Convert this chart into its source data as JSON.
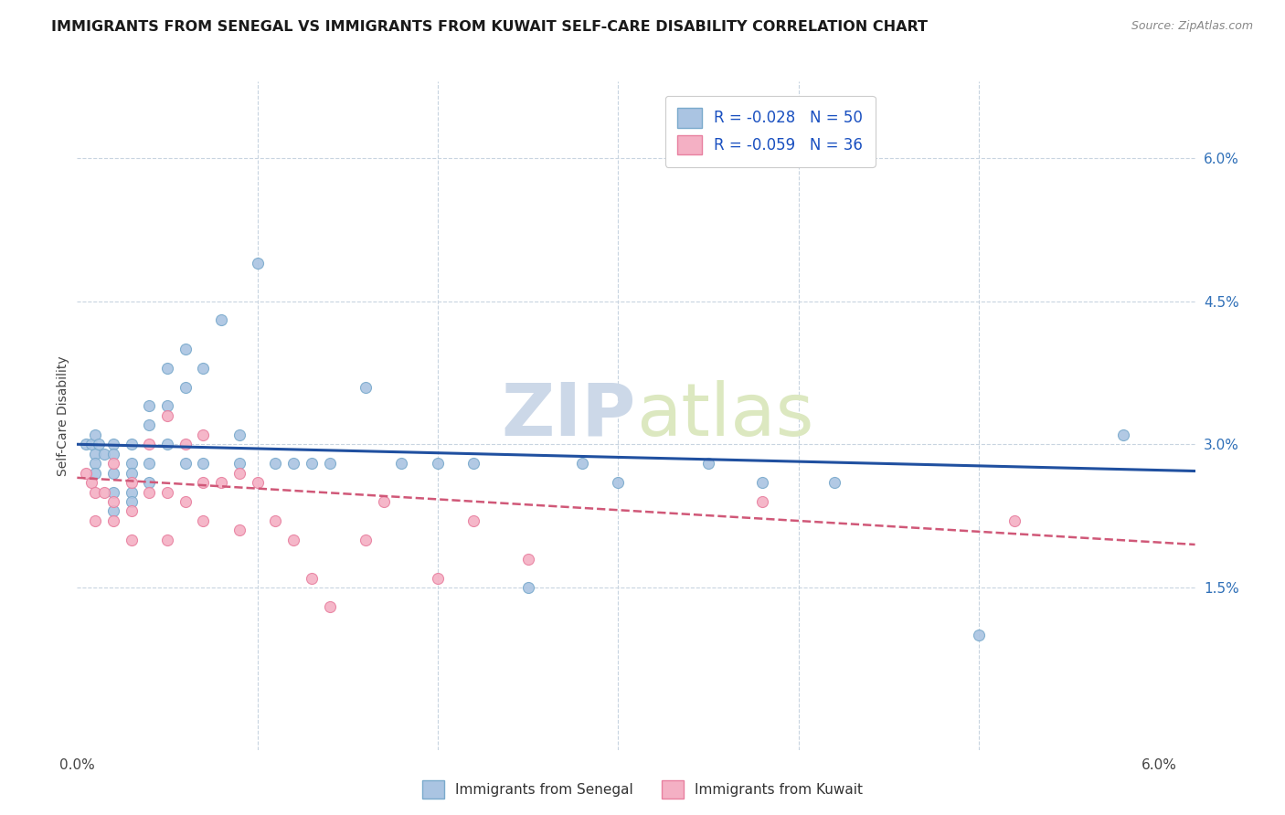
{
  "title": "IMMIGRANTS FROM SENEGAL VS IMMIGRANTS FROM KUWAIT SELF-CARE DISABILITY CORRELATION CHART",
  "source": "Source: ZipAtlas.com",
  "ylabel": "Self-Care Disability",
  "right_yticks": [
    "6.0%",
    "4.5%",
    "3.0%",
    "1.5%"
  ],
  "right_ytick_vals": [
    0.06,
    0.045,
    0.03,
    0.015
  ],
  "xlim": [
    0.0,
    0.062
  ],
  "ylim": [
    -0.002,
    0.068
  ],
  "legend1_label": "R = -0.028   N = 50",
  "legend2_label": "R = -0.059   N = 36",
  "bottom_legend1": "Immigrants from Senegal",
  "bottom_legend2": "Immigrants from Kuwait",
  "senegal_color": "#aac4e2",
  "senegal_edge": "#7aaacc",
  "kuwait_color": "#f4b0c4",
  "kuwait_edge": "#e880a0",
  "line_senegal_color": "#2050a0",
  "line_kuwait_color": "#d05878",
  "watermark_color": "#ccd8e8",
  "bg_color": "#ffffff",
  "grid_color": "#c8d4e0",
  "title_fontsize": 11.5,
  "axis_fontsize": 10,
  "legend_fontsize": 11,
  "marker_size": 75,
  "senegal_x": [
    0.0005,
    0.0008,
    0.001,
    0.001,
    0.001,
    0.001,
    0.0012,
    0.0015,
    0.002,
    0.002,
    0.002,
    0.002,
    0.002,
    0.003,
    0.003,
    0.003,
    0.003,
    0.003,
    0.004,
    0.004,
    0.004,
    0.004,
    0.005,
    0.005,
    0.005,
    0.006,
    0.006,
    0.006,
    0.007,
    0.007,
    0.008,
    0.009,
    0.009,
    0.01,
    0.011,
    0.012,
    0.013,
    0.014,
    0.016,
    0.018,
    0.02,
    0.022,
    0.025,
    0.028,
    0.03,
    0.035,
    0.038,
    0.042,
    0.05,
    0.058
  ],
  "senegal_y": [
    0.03,
    0.03,
    0.031,
    0.029,
    0.028,
    0.027,
    0.03,
    0.029,
    0.03,
    0.029,
    0.027,
    0.025,
    0.023,
    0.03,
    0.028,
    0.027,
    0.025,
    0.024,
    0.034,
    0.032,
    0.028,
    0.026,
    0.038,
    0.034,
    0.03,
    0.04,
    0.036,
    0.028,
    0.038,
    0.028,
    0.043,
    0.031,
    0.028,
    0.049,
    0.028,
    0.028,
    0.028,
    0.028,
    0.036,
    0.028,
    0.028,
    0.028,
    0.015,
    0.028,
    0.026,
    0.028,
    0.026,
    0.026,
    0.01,
    0.031
  ],
  "kuwait_x": [
    0.0005,
    0.0008,
    0.001,
    0.001,
    0.0015,
    0.002,
    0.002,
    0.002,
    0.003,
    0.003,
    0.003,
    0.004,
    0.004,
    0.005,
    0.005,
    0.005,
    0.006,
    0.006,
    0.007,
    0.007,
    0.007,
    0.008,
    0.009,
    0.009,
    0.01,
    0.011,
    0.012,
    0.013,
    0.014,
    0.016,
    0.017,
    0.02,
    0.022,
    0.025,
    0.038,
    0.052
  ],
  "kuwait_y": [
    0.027,
    0.026,
    0.025,
    0.022,
    0.025,
    0.028,
    0.024,
    0.022,
    0.026,
    0.023,
    0.02,
    0.03,
    0.025,
    0.033,
    0.025,
    0.02,
    0.03,
    0.024,
    0.031,
    0.026,
    0.022,
    0.026,
    0.027,
    0.021,
    0.026,
    0.022,
    0.02,
    0.016,
    0.013,
    0.02,
    0.024,
    0.016,
    0.022,
    0.018,
    0.024,
    0.022
  ]
}
